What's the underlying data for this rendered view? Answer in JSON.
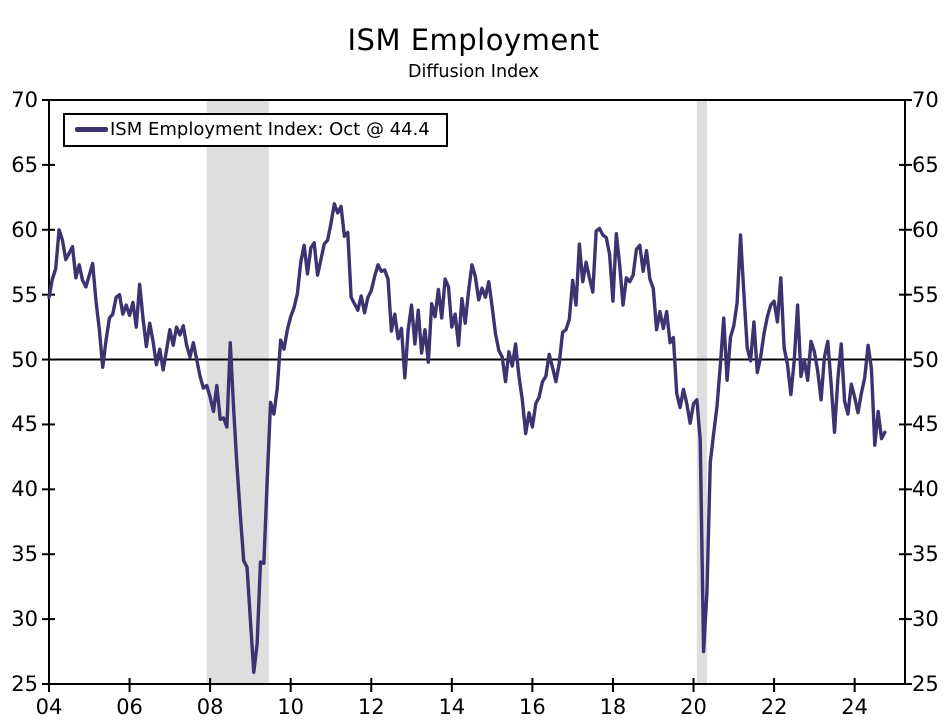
{
  "header": {
    "title": "ISM Employment",
    "subtitle": "Diffusion Index"
  },
  "legend": {
    "label": "ISM Employment Index: Oct @ 44.4"
  },
  "colors": {
    "series": "#3B3470",
    "recession_band": "#DEDEDE",
    "axis": "#000000",
    "background": "#FFFFFF"
  },
  "chart_data": {
    "type": "line",
    "title": "ISM Employment",
    "subtitle": "Diffusion Index",
    "xlabel": "",
    "ylabel": "",
    "grid": false,
    "legend_position": "top-left",
    "ylim": [
      25,
      70
    ],
    "yticks": [
      25,
      30,
      35,
      40,
      45,
      50,
      55,
      60,
      65,
      70
    ],
    "y_axis_sides": [
      "left",
      "right"
    ],
    "xlim": [
      2004,
      2025.25
    ],
    "xticks": {
      "years": [
        2004,
        2006,
        2008,
        2010,
        2012,
        2014,
        2016,
        2018,
        2020,
        2022,
        2024
      ],
      "labels": [
        "04",
        "06",
        "08",
        "10",
        "12",
        "14",
        "16",
        "18",
        "20",
        "22",
        "24"
      ]
    },
    "reference_line": 50,
    "recession_bands": [
      [
        2007.917,
        2009.458
      ],
      [
        2020.083,
        2020.333
      ]
    ],
    "series": [
      {
        "name": "ISM Employment Index",
        "frequency": "monthly",
        "start_year": 2004,
        "start_month": 1,
        "last_label": "Oct @ 44.4",
        "values": [
          54.8,
          56.2,
          57.0,
          60.0,
          59.2,
          57.7,
          58.2,
          58.7,
          56.3,
          57.3,
          56.1,
          55.6,
          56.5,
          57.4,
          54.5,
          52.3,
          49.4,
          51.5,
          53.2,
          53.5,
          54.8,
          55.0,
          53.5,
          54.2,
          53.4,
          54.4,
          52.5,
          55.8,
          53.2,
          51.0,
          52.8,
          51.4,
          49.6,
          50.8,
          49.2,
          50.7,
          52.3,
          51.1,
          52.5,
          51.9,
          52.6,
          51.1,
          50.2,
          51.3,
          50.0,
          48.7,
          47.8,
          48.0,
          47.1,
          46.0,
          48.0,
          45.4,
          45.5,
          44.8,
          51.3,
          46.2,
          41.8,
          38.0,
          34.5,
          34.0,
          29.9,
          25.9,
          28.1,
          34.4,
          34.3,
          40.7,
          46.7,
          45.8,
          47.8,
          51.5,
          50.8,
          52.3,
          53.3,
          54.0,
          55.1,
          57.5,
          58.8,
          56.6,
          58.6,
          59.0,
          56.5,
          57.7,
          58.9,
          59.2,
          60.5,
          62.0,
          61.3,
          61.8,
          59.5,
          59.8,
          54.8,
          54.3,
          53.8,
          54.9,
          53.6,
          54.8,
          55.3,
          56.4,
          57.3,
          56.8,
          56.9,
          56.2,
          52.2,
          53.5,
          51.6,
          52.4,
          48.6,
          52.3,
          54.2,
          51.2,
          53.8,
          50.5,
          52.3,
          49.8,
          54.3,
          53.3,
          55.4,
          53.2,
          56.2,
          55.6,
          52.5,
          53.5,
          51.1,
          54.7,
          52.8,
          55.3,
          57.3,
          56.4,
          54.6,
          55.5,
          54.8,
          56.0,
          54.1,
          52.0,
          50.7,
          50.2,
          48.3,
          50.6,
          49.5,
          51.2,
          48.7,
          46.9,
          44.3,
          45.9,
          44.8,
          46.6,
          47.1,
          48.3,
          48.7,
          50.4,
          49.4,
          48.3,
          49.7,
          52.1,
          52.3,
          53.1,
          56.1,
          54.2,
          58.9,
          56.0,
          57.5,
          56.3,
          55.2,
          59.9,
          60.1,
          59.6,
          59.4,
          58.1,
          54.5,
          59.7,
          57.3,
          54.2,
          56.3,
          56.0,
          56.5,
          58.5,
          58.8,
          56.8,
          58.4,
          56.2,
          55.5,
          52.3,
          53.7,
          52.4,
          53.7,
          51.3,
          51.7,
          47.4,
          46.3,
          47.7,
          46.6,
          45.1,
          46.6,
          46.9,
          43.8,
          27.5,
          32.1,
          42.1,
          44.3,
          46.4,
          49.6,
          53.2,
          48.4,
          51.7,
          52.6,
          54.4,
          59.6,
          55.1,
          50.9,
          49.9,
          52.9,
          49.0,
          50.2,
          52.0,
          53.3,
          54.2,
          54.5,
          52.9,
          56.3,
          50.9,
          49.6,
          47.3,
          49.9,
          54.2,
          48.7,
          50.0,
          48.4,
          51.4,
          50.6,
          49.1,
          46.9,
          50.2,
          51.4,
          48.1,
          44.4,
          48.5,
          51.2,
          46.8,
          45.8,
          48.1,
          47.1,
          45.9,
          47.4,
          48.6,
          51.1,
          49.3,
          43.4,
          46.0,
          43.9,
          44.4
        ]
      }
    ]
  }
}
